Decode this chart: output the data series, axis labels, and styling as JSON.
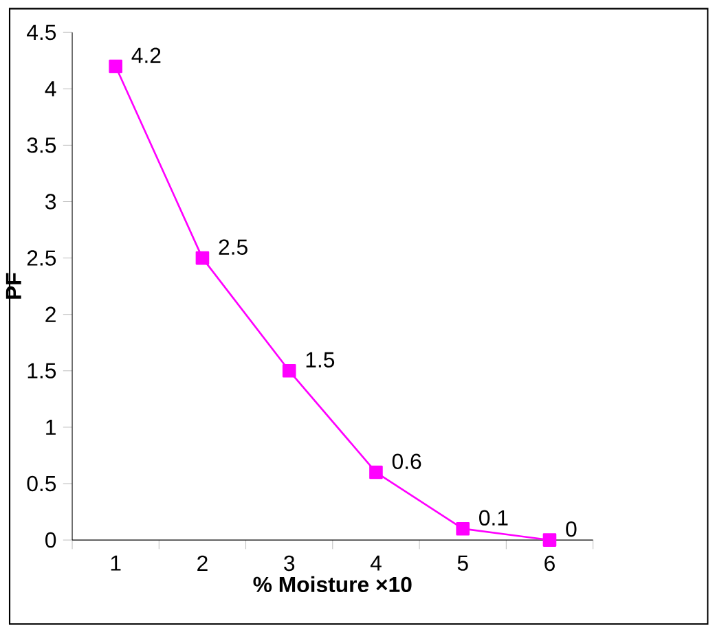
{
  "chart_data": {
    "type": "line",
    "categories": [
      "1",
      "2",
      "3",
      "4",
      "5",
      "6"
    ],
    "values": [
      4.2,
      2.5,
      1.5,
      0.6,
      0.1,
      0
    ],
    "color": "#ff00ff",
    "marker": "square",
    "line_style": "solid",
    "data_labels": true,
    "xlabel": "% Moisture ×10",
    "ylabel": "PF",
    "ylim": [
      0,
      4.5
    ],
    "yticks": [
      0,
      0.5,
      1,
      1.5,
      2,
      2.5,
      3,
      3.5,
      4,
      4.5
    ]
  }
}
